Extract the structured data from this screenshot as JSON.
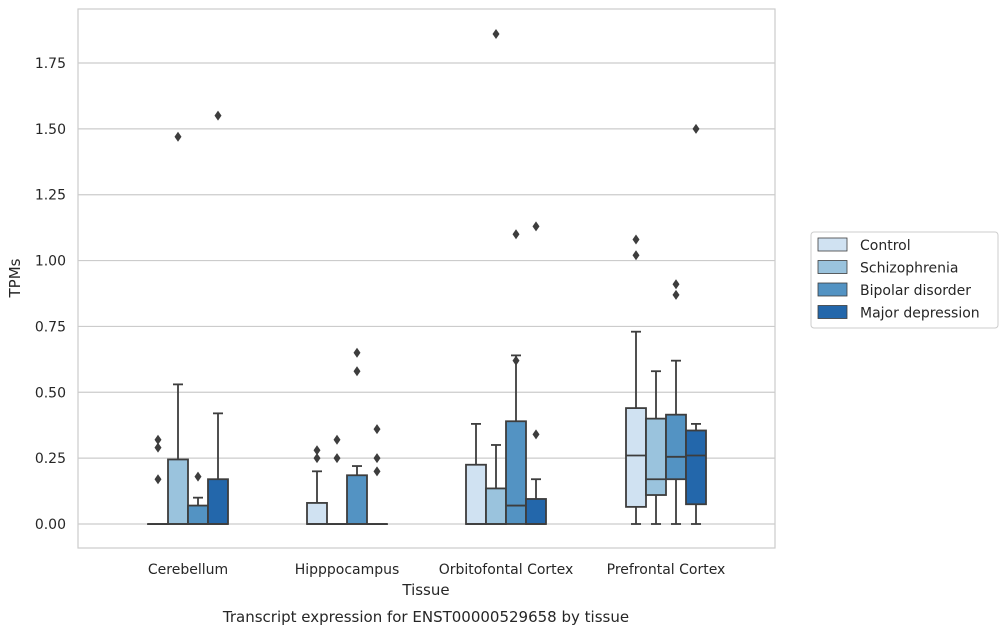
{
  "chart_data": {
    "type": "box",
    "title": "",
    "caption": "Transcript expression for ENST00000529658 by tissue",
    "xlabel": "Tissue",
    "ylabel": "TPMs",
    "ylim": [
      -0.09,
      1.96
    ],
    "yticks": [
      0.0,
      0.25,
      0.5,
      0.75,
      1.0,
      1.25,
      1.5,
      1.75
    ],
    "ytick_labels": [
      "0.00",
      "0.25",
      "0.50",
      "0.75",
      "1.00",
      "1.25",
      "1.50",
      "1.75"
    ],
    "grid": "horizontal",
    "legend_position": "right",
    "categories": [
      "Cerebellum",
      "Hipppocampus",
      "Orbitofontal Cortex",
      "Prefrontal Cortex"
    ],
    "series": [
      {
        "name": "Control",
        "color": "#d0e2f2",
        "boxes": [
          {
            "q1": 0.0,
            "median": 0.0,
            "q3": 0.0,
            "whisker_low": 0.0,
            "whisker_high": 0.0,
            "outliers": [
              0.17,
              0.29,
              0.32
            ]
          },
          {
            "q1": 0.0,
            "median": 0.0,
            "q3": 0.08,
            "whisker_low": 0.0,
            "whisker_high": 0.2,
            "outliers": [
              0.25,
              0.28
            ]
          },
          {
            "q1": 0.0,
            "median": 0.0,
            "q3": 0.225,
            "whisker_low": 0.0,
            "whisker_high": 0.38,
            "outliers": []
          },
          {
            "q1": 0.065,
            "median": 0.26,
            "q3": 0.44,
            "whisker_low": 0.0,
            "whisker_high": 0.73,
            "outliers": [
              1.02,
              1.08
            ]
          }
        ]
      },
      {
        "name": "Schizophrenia",
        "color": "#9ac3dd",
        "boxes": [
          {
            "q1": 0.0,
            "median": 0.0,
            "q3": 0.245,
            "whisker_low": 0.0,
            "whisker_high": 0.53,
            "outliers": [
              1.47
            ]
          },
          {
            "q1": 0.0,
            "median": 0.0,
            "q3": 0.0,
            "whisker_low": 0.0,
            "whisker_high": 0.0,
            "outliers": [
              0.25,
              0.32
            ]
          },
          {
            "q1": 0.0,
            "median": 0.0,
            "q3": 0.135,
            "whisker_low": 0.0,
            "whisker_high": 0.3,
            "outliers": [
              1.86
            ]
          },
          {
            "q1": 0.11,
            "median": 0.17,
            "q3": 0.4,
            "whisker_low": 0.0,
            "whisker_high": 0.58,
            "outliers": []
          }
        ]
      },
      {
        "name": "Bipolar disorder",
        "color": "#5393c3",
        "boxes": [
          {
            "q1": 0.0,
            "median": 0.0,
            "q3": 0.07,
            "whisker_low": 0.0,
            "whisker_high": 0.1,
            "outliers": [
              0.18
            ]
          },
          {
            "q1": 0.0,
            "median": 0.0,
            "q3": 0.185,
            "whisker_low": 0.0,
            "whisker_high": 0.22,
            "outliers": [
              0.58,
              0.65
            ]
          },
          {
            "q1": 0.0,
            "median": 0.07,
            "q3": 0.39,
            "whisker_low": 0.0,
            "whisker_high": 0.64,
            "outliers": [
              0.62,
              1.1
            ]
          },
          {
            "q1": 0.17,
            "median": 0.255,
            "q3": 0.415,
            "whisker_low": 0.0,
            "whisker_high": 0.62,
            "outliers": [
              0.87,
              0.91
            ]
          }
        ]
      },
      {
        "name": "Major depression",
        "color": "#2367ab",
        "boxes": [
          {
            "q1": 0.0,
            "median": 0.0,
            "q3": 0.17,
            "whisker_low": 0.0,
            "whisker_high": 0.42,
            "outliers": [
              1.55
            ]
          },
          {
            "q1": 0.0,
            "median": 0.0,
            "q3": 0.0,
            "whisker_low": 0.0,
            "whisker_high": 0.0,
            "outliers": [
              0.2,
              0.25,
              0.36
            ]
          },
          {
            "q1": 0.0,
            "median": 0.0,
            "q3": 0.095,
            "whisker_low": 0.0,
            "whisker_high": 0.17,
            "outliers": [
              0.34,
              1.13
            ]
          },
          {
            "q1": 0.075,
            "median": 0.26,
            "q3": 0.355,
            "whisker_low": 0.0,
            "whisker_high": 0.38,
            "outliers": [
              1.5
            ]
          }
        ]
      }
    ]
  }
}
